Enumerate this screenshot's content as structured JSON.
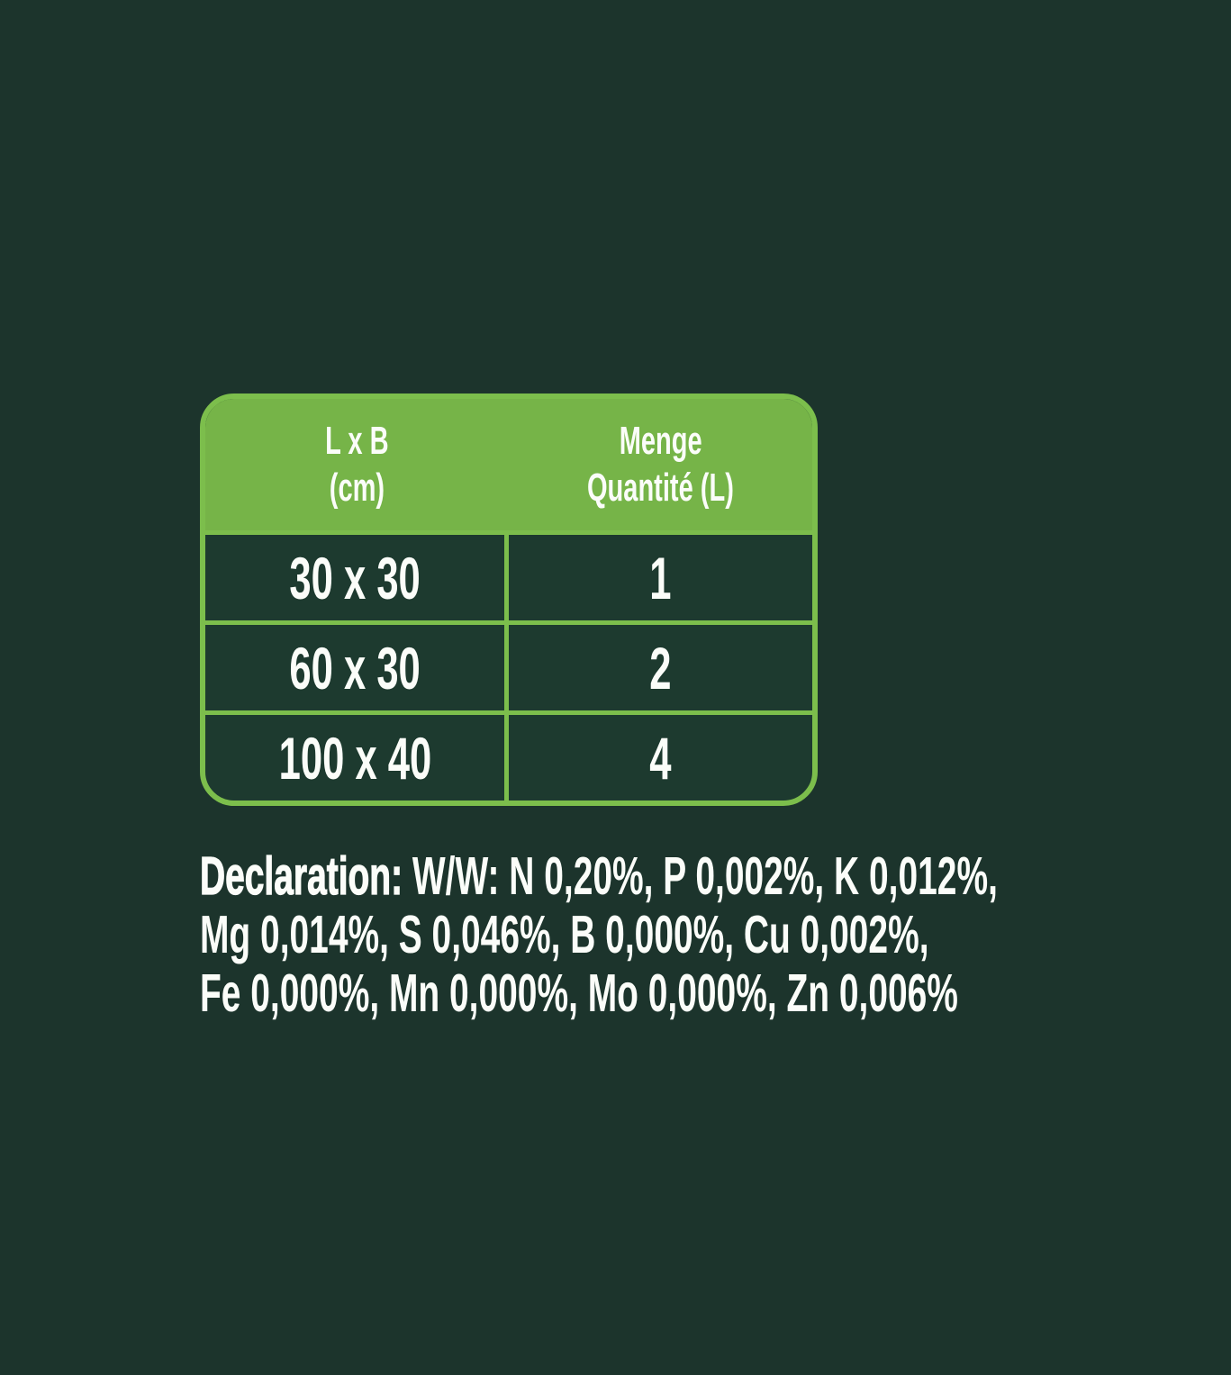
{
  "colors": {
    "page_background": "#1c342c",
    "table_header_green": "#76b448",
    "table_line_green": "#7cbe4c",
    "table_cell_background": "#1d3a2f",
    "text_white": "#fbfdf9"
  },
  "table": {
    "header": {
      "size_line1": "L x B",
      "size_line2": "(cm)",
      "qty_line1": "Menge",
      "qty_line2": "Quantité (L)"
    },
    "rows": [
      {
        "size": "30 x 30",
        "quantity": "1"
      },
      {
        "size": "60 x 30",
        "quantity": "2"
      },
      {
        "size": "100 x 40",
        "quantity": "4"
      }
    ]
  },
  "declaration": {
    "label": "Declaration:",
    "line1_rest": " W/W: N 0,20%, P 0,002%, K 0,012%,",
    "line2": "Mg 0,014%, S 0,046%, B 0,000%, Cu 0,002%,",
    "line3": "Fe 0,000%, Mn 0,000%, Mo 0,000%, Zn 0,006%"
  }
}
